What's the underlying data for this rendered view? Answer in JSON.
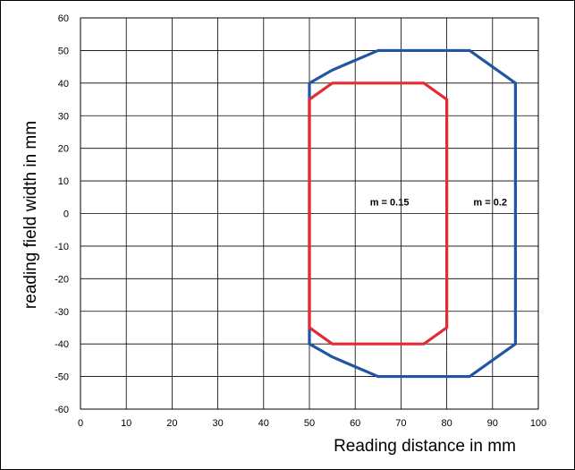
{
  "chart_data": {
    "type": "line",
    "title": "",
    "xlabel": "Reading distance in mm",
    "ylabel": "reading field width in mm",
    "xlim": [
      0,
      100
    ],
    "ylim": [
      -60,
      60
    ],
    "x_ticks": [
      "0",
      "10",
      "20",
      "30",
      "40",
      "50",
      "60",
      "70",
      "80",
      "90",
      "100"
    ],
    "y_ticks": [
      "60",
      "50",
      "40",
      "30",
      "20",
      "10",
      "0",
      "-10",
      "-20",
      "-30",
      "-40",
      "-50",
      "-60"
    ],
    "grid": true,
    "series": [
      {
        "name": "m = 0.2",
        "color": "#1f55a3",
        "points": [
          [
            50,
            40
          ],
          [
            55,
            44
          ],
          [
            65,
            50
          ],
          [
            85,
            50
          ],
          [
            95,
            40
          ],
          [
            95,
            -40
          ],
          [
            85,
            -50
          ],
          [
            65,
            -50
          ],
          [
            55,
            -44
          ],
          [
            50,
            -40
          ],
          [
            50,
            40
          ]
        ]
      },
      {
        "name": "m = 0.15",
        "color": "#e42b32",
        "points": [
          [
            50,
            35
          ],
          [
            55,
            40
          ],
          [
            75,
            40
          ],
          [
            80,
            35
          ],
          [
            80,
            -35
          ],
          [
            75,
            -40
          ],
          [
            55,
            -40
          ],
          [
            50,
            -35
          ],
          [
            50,
            35
          ]
        ]
      }
    ],
    "annotations": [
      {
        "text": "m = 0.15",
        "x": 67.5,
        "y": 2.5
      },
      {
        "text": "m = 0.2",
        "x": 89.5,
        "y": 2.5
      }
    ]
  }
}
